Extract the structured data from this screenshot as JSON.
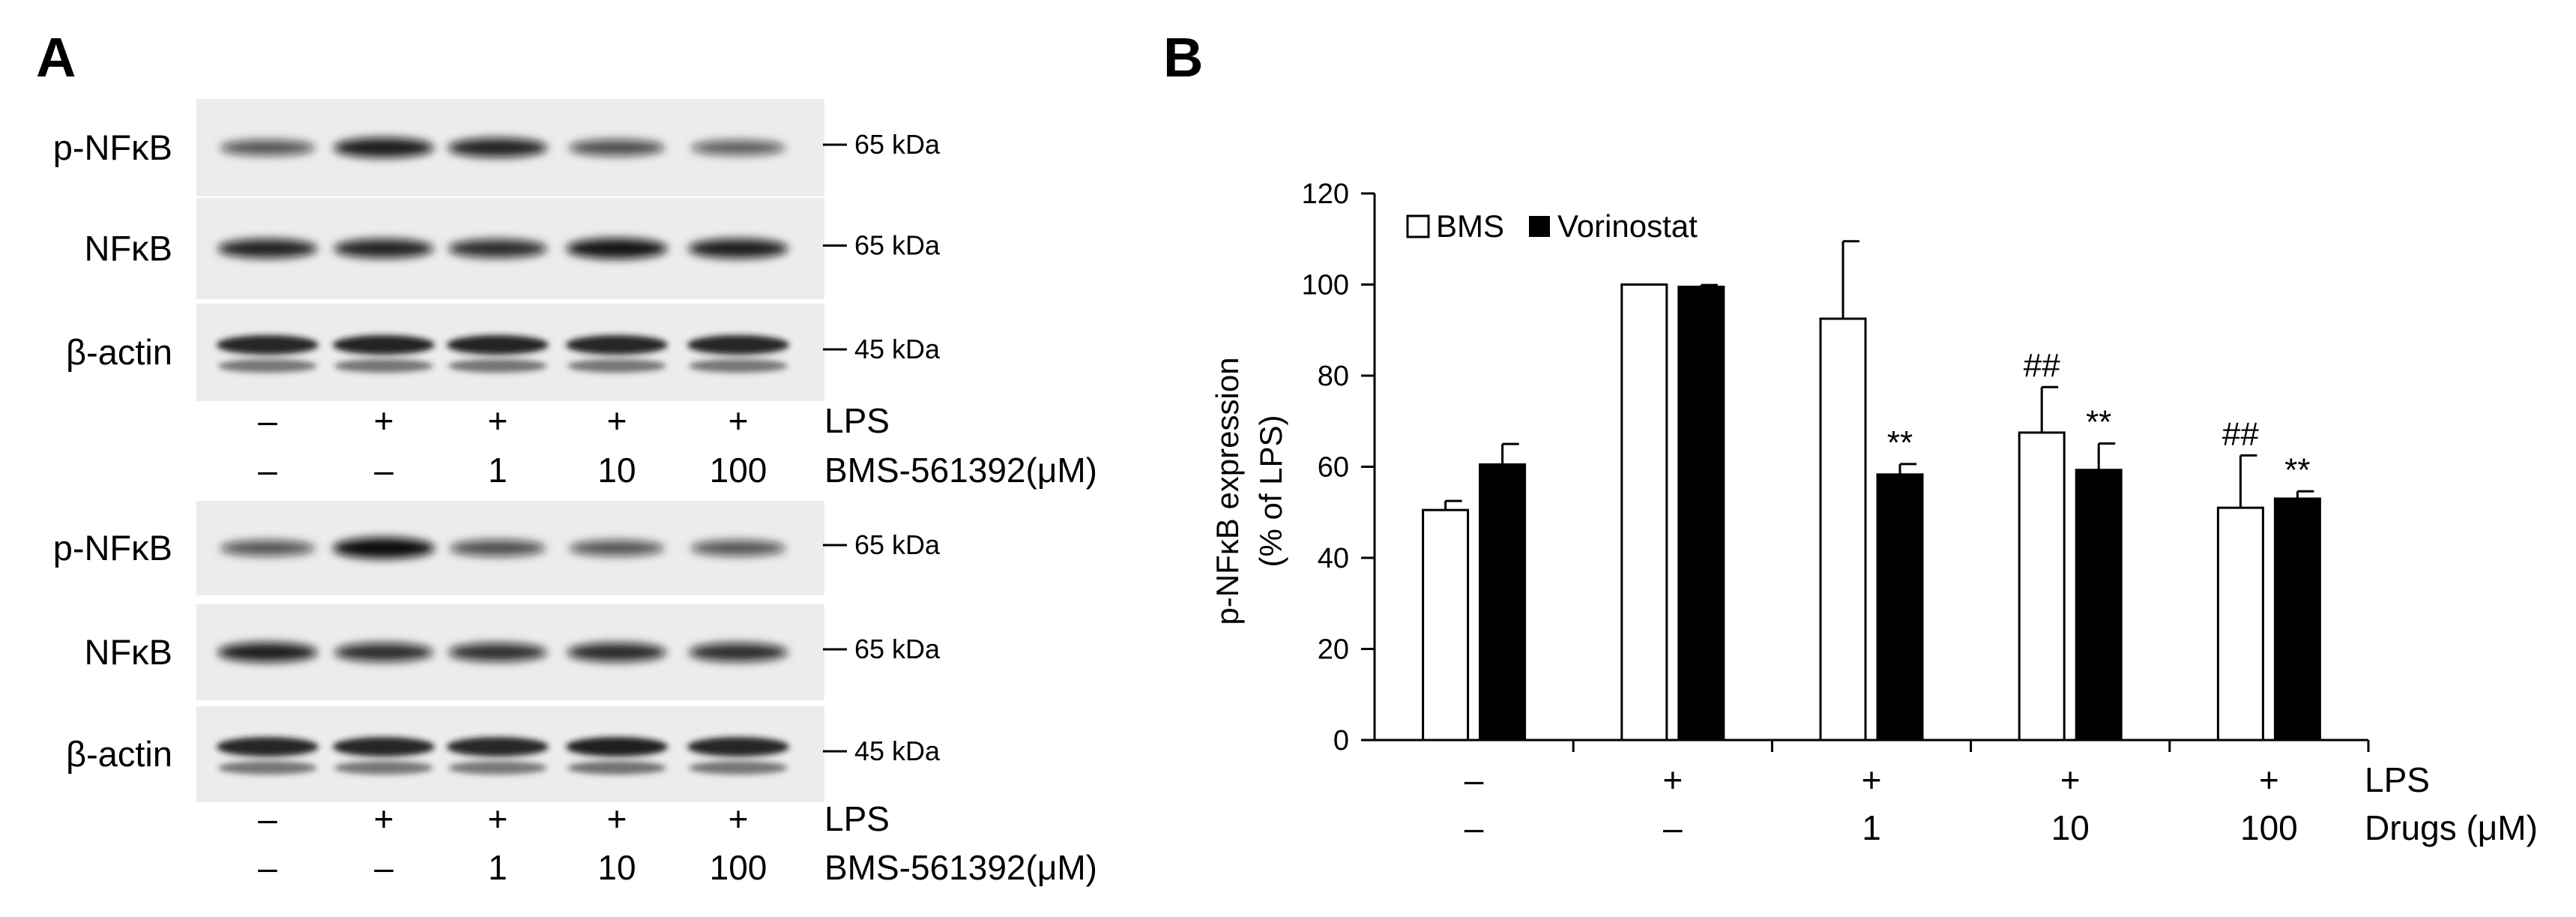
{
  "panel_a": {
    "letter": "A",
    "blots": [
      {
        "rows": [
          {
            "label": "p-NFκB",
            "kda": "65 kDa",
            "bands": [
              0.55,
              0.9,
              0.85,
              0.6,
              0.5
            ]
          },
          {
            "label": "NFκB",
            "kda": "65 kDa",
            "bands": [
              0.85,
              0.85,
              0.8,
              0.95,
              0.88
            ]
          },
          {
            "label": "β-actin",
            "kda": "45 kDa",
            "bands": [
              0.9,
              0.92,
              0.92,
              0.9,
              0.9
            ]
          }
        ],
        "conditions": [
          {
            "values": [
              "–",
              "+",
              "+",
              "+",
              "+"
            ],
            "label": "LPS"
          },
          {
            "values": [
              "–",
              "–",
              "1",
              "10",
              "100"
            ],
            "label": "BMS-561392(μM)"
          }
        ]
      },
      {
        "rows": [
          {
            "label": "p-NFκB",
            "kda": "65 kDa",
            "bands": [
              0.55,
              1.0,
              0.6,
              0.55,
              0.55
            ]
          },
          {
            "label": "NFκB",
            "kda": "65 kDa",
            "bands": [
              0.88,
              0.8,
              0.78,
              0.82,
              0.8
            ]
          },
          {
            "label": "β-actin",
            "kda": "45 kDa",
            "bands": [
              0.9,
              0.9,
              0.88,
              0.95,
              0.9
            ]
          }
        ],
        "conditions": [
          {
            "values": [
              "–",
              "+",
              "+",
              "+",
              "+"
            ],
            "label": "LPS"
          },
          {
            "values": [
              "–",
              "–",
              "1",
              "10",
              "100"
            ],
            "label": "BMS-561392(μM)"
          }
        ]
      }
    ]
  },
  "panel_b": {
    "letter": "B"
  },
  "chart_data": {
    "type": "bar",
    "title": "",
    "ylabel_lines": [
      "p-NFκB expression",
      "(% of LPS)"
    ],
    "ylim": [
      0,
      120
    ],
    "yticks": [
      0,
      20,
      40,
      60,
      80,
      100,
      120
    ],
    "legend": [
      "BMS",
      "Vorinostat"
    ],
    "legend_position": "top-left",
    "series": [
      {
        "name": "BMS",
        "color": "#ffffff",
        "values": [
          50.5,
          100,
          92.5,
          67.5,
          51
        ],
        "errors": [
          2,
          0,
          17,
          10,
          11.5
        ],
        "annotations": [
          "",
          "",
          "",
          "##",
          "##"
        ]
      },
      {
        "name": "Vorinostat",
        "color": "#000000",
        "values": [
          60.5,
          99.5,
          58.3,
          59.3,
          53
        ],
        "errors": [
          4.5,
          0.4,
          2.3,
          5.8,
          1.6
        ],
        "annotations": [
          "",
          "",
          "**",
          "**",
          "**"
        ]
      }
    ],
    "category_rows": [
      {
        "label": "LPS",
        "values": [
          "–",
          "+",
          "+",
          "+",
          "+"
        ]
      },
      {
        "label": "Drugs (μM)",
        "values": [
          "–",
          "–",
          "1",
          "10",
          "100"
        ]
      }
    ]
  }
}
